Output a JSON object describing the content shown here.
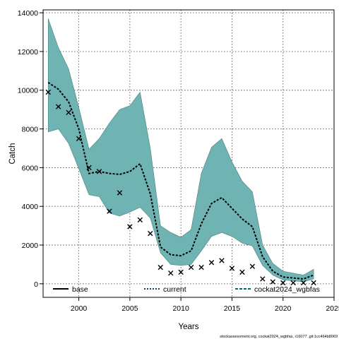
{
  "chart_data": {
    "type": "line",
    "xlabel": "Years",
    "ylabel": "Catch",
    "xlim": [
      1996.5,
      2025
    ],
    "ylim": [
      -700,
      14150
    ],
    "x_ticks": [
      2000,
      2005,
      2010,
      2015,
      2020,
      2025
    ],
    "y_ticks": [
      0,
      2000,
      4000,
      6000,
      8000,
      10000,
      12000,
      14000
    ],
    "grid": true,
    "legend": {
      "placement": "bottom",
      "entries": [
        {
          "label": "base",
          "style": "solid",
          "color": "#000000"
        },
        {
          "label": "current",
          "style": "dotted",
          "color": "#1a3a6e"
        },
        {
          "label": "cockat2024_wgbfas",
          "style": "dashed",
          "color": "#006b6b"
        }
      ]
    },
    "band_color": "#6fb3b3",
    "band": {
      "x": [
        1997,
        1998,
        1999,
        2000,
        2001,
        2002,
        2003,
        2004,
        2005,
        2006,
        2007,
        2008,
        2009,
        2010,
        2011,
        2012,
        2013,
        2014,
        2015,
        2016,
        2017,
        2018,
        2019,
        2020,
        2021,
        2022,
        2023
      ],
      "upper": [
        13700,
        12200,
        11100,
        9100,
        6950,
        7500,
        8300,
        9000,
        9200,
        9900,
        7000,
        3000,
        2650,
        2400,
        2800,
        5700,
        7050,
        7500,
        6300,
        5300,
        4750,
        2000,
        1050,
        650,
        550,
        450,
        750
      ],
      "lower": [
        7850,
        8000,
        7250,
        5950,
        4600,
        4500,
        3650,
        3500,
        3700,
        3950,
        3400,
        1600,
        1000,
        950,
        1000,
        1700,
        2450,
        2650,
        2450,
        2100,
        1950,
        950,
        450,
        200,
        150,
        100,
        250
      ]
    },
    "series": [
      {
        "name": "cockat2024_wgbfas",
        "style": "dashed",
        "x": [
          1997,
          1998,
          1999,
          2000,
          2001,
          2002,
          2003,
          2004,
          2005,
          2006,
          2007,
          2008,
          2009,
          2010,
          2011,
          2012,
          2013,
          2014,
          2015,
          2016,
          2017,
          2018,
          2019,
          2020,
          2021,
          2022,
          2023
        ],
        "values": [
          10400,
          10050,
          9400,
          8000,
          5700,
          5800,
          5700,
          5650,
          5800,
          6200,
          4650,
          1900,
          1500,
          1450,
          1700,
          3100,
          4150,
          4450,
          3900,
          3350,
          2950,
          1400,
          650,
          350,
          300,
          250,
          450
        ]
      },
      {
        "name": "observed",
        "style": "cross",
        "x": [
          1997,
          1998,
          1999,
          2000,
          2001,
          2002,
          2003,
          2004,
          2005,
          2006,
          2007,
          2008,
          2009,
          2010,
          2011,
          2012,
          2013,
          2014,
          2015,
          2016,
          2017,
          2018,
          2019,
          2020,
          2021,
          2022,
          2023
        ],
        "values": [
          9900,
          9150,
          8850,
          7500,
          6000,
          5800,
          3750,
          4700,
          2950,
          3300,
          2600,
          850,
          550,
          600,
          850,
          850,
          1100,
          1200,
          800,
          600,
          900,
          250,
          100,
          50,
          50,
          50,
          50
        ]
      }
    ],
    "footnote": "stockassessment.org, cockat2024_wgbfas, r16077 ,git:1cc464b8069"
  }
}
